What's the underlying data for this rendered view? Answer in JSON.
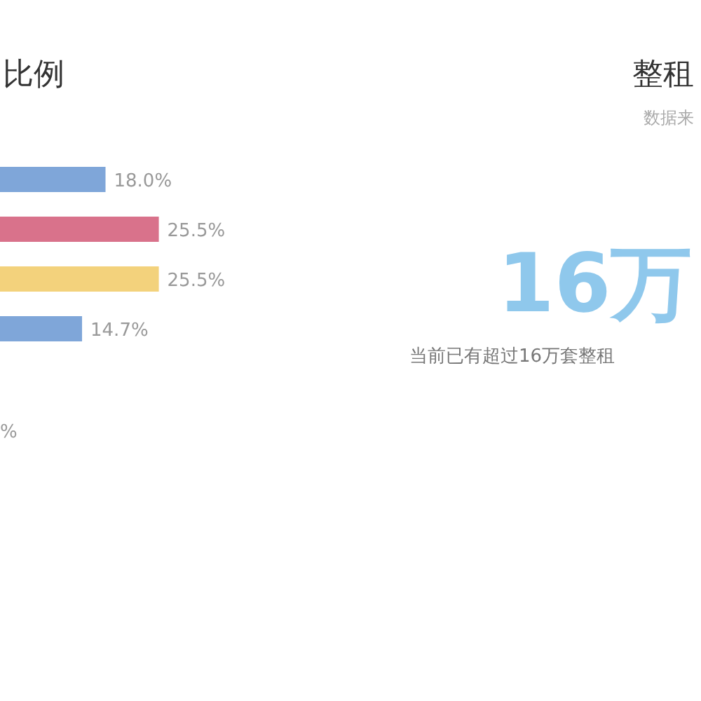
{
  "chart_data": [
    {
      "type": "bar",
      "orientation": "horizontal",
      "title": "比例",
      "categories": [
        null,
        null,
        null,
        null
      ],
      "values": [
        18.0,
        25.5,
        25.5,
        14.7
      ],
      "colors": [
        "#7fa6d9",
        "#d9728b",
        "#f3d27c",
        "#7fa6d9"
      ],
      "value_labels": [
        "18.0%",
        "25.5%",
        "25.5%",
        "14.7%"
      ],
      "annotations": [
        "%"
      ]
    },
    {
      "type": "other",
      "title": "整租",
      "subtitle": "数据来",
      "annotations": [
        "16万",
        "当前已有超过16万套整租"
      ]
    }
  ]
}
